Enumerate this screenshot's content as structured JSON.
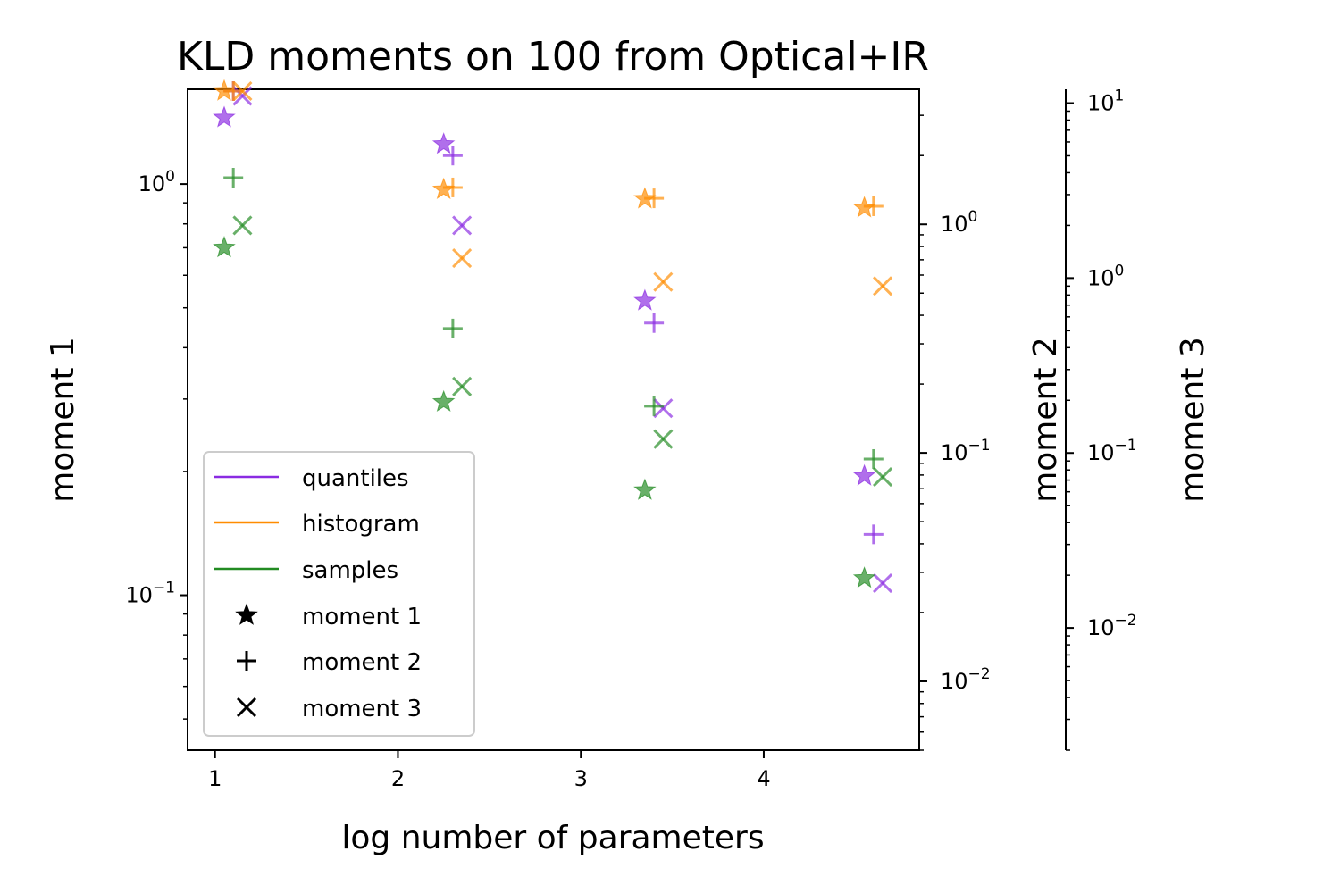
{
  "chart_data": {
    "type": "scatter",
    "title": "KLD moments on 100 from Optical+IR",
    "xlabel": "log number of parameters",
    "ylabel_1": "moment 1",
    "ylabel_2": "moment 2",
    "ylabel_3": "moment 3",
    "xlim": [
      0.85,
      4.85
    ],
    "x_ticks": [
      1,
      2,
      3,
      4
    ],
    "x_tick_labels": [
      "1",
      "2",
      "3",
      "4"
    ],
    "y1_scale": "log",
    "y1_lim": [
      0.042,
      1.7
    ],
    "y1_major_ticks": [
      {
        "value": 0.1,
        "base": "10",
        "exp": "−1"
      },
      {
        "value": 1,
        "base": "10",
        "exp": "0"
      }
    ],
    "y2_scale": "log",
    "y2_lim": [
      0.005,
      3.9
    ],
    "y2_major_ticks": [
      {
        "value": 0.01,
        "base": "10",
        "exp": "−2"
      },
      {
        "value": 0.1,
        "base": "10",
        "exp": "−1"
      },
      {
        "value": 1,
        "base": "10",
        "exp": "0"
      }
    ],
    "y3_scale": "log",
    "y3_lim": [
      0.002,
      12
    ],
    "y3_major_ticks": [
      {
        "value": 0.01,
        "base": "10",
        "exp": "−2"
      },
      {
        "value": 0.1,
        "base": "10",
        "exp": "−1"
      },
      {
        "value": 1,
        "base": "10",
        "exp": "0"
      },
      {
        "value": 10,
        "base": "10",
        "exp": "1"
      }
    ],
    "grid": false,
    "legend_position": "lower-left",
    "legend": {
      "colors": [
        {
          "label": "quantiles",
          "color": "#8a2be2"
        },
        {
          "label": "histogram",
          "color": "#ff8c00"
        },
        {
          "label": "samples",
          "color": "#228b22"
        }
      ],
      "markers": [
        {
          "label": "moment 1",
          "marker": "star"
        },
        {
          "label": "moment 2",
          "marker": "plus"
        },
        {
          "label": "moment 3",
          "marker": "x"
        }
      ]
    },
    "series": [
      {
        "name": "quantiles",
        "color": "#8a2be2",
        "moment1": {
          "x": [
            1.05,
            2.25,
            3.35,
            4.55
          ],
          "y": [
            1.45,
            1.25,
            0.52,
            0.195
          ]
        },
        "moment2": {
          "x": [
            1.1,
            2.3,
            3.4,
            4.6
          ],
          "y": [
            4.5,
            2.0,
            0.37,
            0.044
          ]
        },
        "moment3": {
          "x": [
            1.15,
            2.35,
            3.45,
            4.65
          ],
          "y": [
            11.0,
            2.0,
            0.18,
            0.018
          ]
        }
      },
      {
        "name": "histogram",
        "color": "#ff8c00",
        "moment1": {
          "x": [
            1.05,
            2.25,
            3.35,
            4.55
          ],
          "y": [
            1.75,
            0.97,
            0.92,
            0.875
          ]
        },
        "moment2": {
          "x": [
            1.1,
            2.3,
            3.4,
            4.6
          ],
          "y": [
            4.2,
            1.45,
            1.3,
            1.2
          ]
        },
        "moment3": {
          "x": [
            1.15,
            2.35,
            3.45,
            4.65
          ],
          "y": [
            12.0,
            1.3,
            0.95,
            0.9
          ]
        }
      },
      {
        "name": "samples",
        "color": "#228b22",
        "moment1": {
          "x": [
            1.05,
            2.25,
            3.35,
            4.55
          ],
          "y": [
            0.7,
            0.295,
            0.18,
            0.11
          ]
        },
        "moment2": {
          "x": [
            1.1,
            2.3,
            3.4,
            4.6
          ],
          "y": [
            1.6,
            0.35,
            0.16,
            0.094
          ]
        },
        "moment3": {
          "x": [
            1.15,
            2.35,
            3.45,
            4.65
          ],
          "y": [
            2.0,
            0.24,
            0.12,
            0.073
          ]
        }
      }
    ]
  }
}
